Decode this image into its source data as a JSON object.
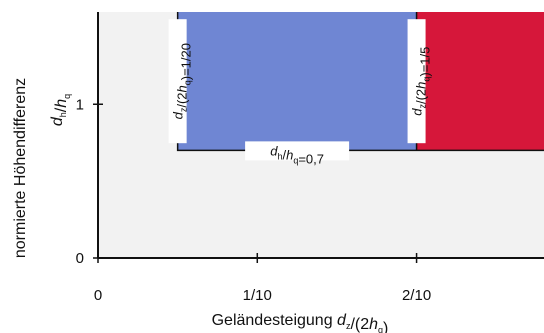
{
  "chart_data": {
    "type": "area",
    "title": "",
    "xlabel": "Geländesteigung",
    "xlabel_var": "d",
    "xlabel_var_sub": "z",
    "xlabel_rest": "/(2",
    "xlabel_var2": "h",
    "xlabel_var2_sub": "q",
    "xlabel_close": ")",
    "ylabel": "normierte Höhendifferenz",
    "ylabel_var": "d",
    "ylabel_var_sub": "h",
    "ylabel_sep": "/",
    "ylabel_var2": "h",
    "ylabel_var2_sub": "q",
    "xlim": [
      0,
      0.28
    ],
    "ylim": [
      0,
      1.6
    ],
    "x_ticks": [
      {
        "value": 0,
        "label": "0"
      },
      {
        "value": 0.1,
        "label": "1/10"
      },
      {
        "value": 0.2,
        "label": "2/10"
      }
    ],
    "y_ticks": [
      {
        "value": 0,
        "label": "0"
      },
      {
        "value": 1,
        "label": "1"
      }
    ],
    "regions": [
      {
        "name": "blue",
        "x": [
          0.05,
          0.2
        ],
        "y": [
          0.7,
          1.6
        ],
        "color": "#6f86d3"
      },
      {
        "name": "red",
        "x": [
          0.2,
          0.28
        ],
        "y": [
          0.7,
          1.6
        ],
        "color": "#d6173a"
      }
    ],
    "background_color": "#f2f2f2",
    "annotations": [
      {
        "id": "boundary-1-20",
        "text_var": "d",
        "text_sub": "z",
        "text_mid": "/(2",
        "text_var2": "h",
        "text_sub2": "q",
        "text_end": ")=1/20",
        "x": 0.05,
        "y_mid": 1.15,
        "rotate": true
      },
      {
        "id": "boundary-1-5",
        "text_var": "d",
        "text_sub": "z",
        "text_mid": "/(2",
        "text_var2": "h",
        "text_sub2": "q",
        "text_end": ")=1/5",
        "x": 0.2,
        "y_mid": 1.15,
        "rotate": true
      },
      {
        "id": "boundary-0-7",
        "text_var": "d",
        "text_sub": "h",
        "text_mid": "/",
        "text_var2": "h",
        "text_sub2": "q",
        "text_end": "=0,7",
        "x_mid": 0.125,
        "y": 0.7,
        "rotate": false
      }
    ]
  }
}
